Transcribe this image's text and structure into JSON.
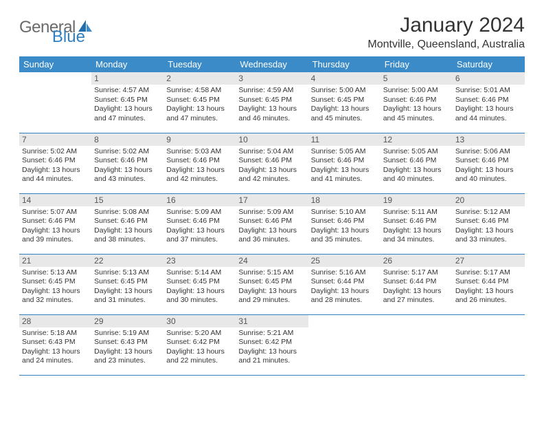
{
  "brand": {
    "part1": "General",
    "part2": "Blue"
  },
  "title": "January 2024",
  "location": "Montville, Queensland, Australia",
  "colors": {
    "header_bg": "#3b8bc8",
    "header_text": "#ffffff",
    "rule": "#2f7fc2",
    "daynum_bg": "#e8e8e8",
    "text": "#333333",
    "logo_gray": "#6a6a6a",
    "logo_blue": "#2f7fc2"
  },
  "weekdays": [
    "Sunday",
    "Monday",
    "Tuesday",
    "Wednesday",
    "Thursday",
    "Friday",
    "Saturday"
  ],
  "weeks": [
    [
      null,
      {
        "n": "1",
        "sr": "Sunrise: 4:57 AM",
        "ss": "Sunset: 6:45 PM",
        "d1": "Daylight: 13 hours",
        "d2": "and 47 minutes."
      },
      {
        "n": "2",
        "sr": "Sunrise: 4:58 AM",
        "ss": "Sunset: 6:45 PM",
        "d1": "Daylight: 13 hours",
        "d2": "and 47 minutes."
      },
      {
        "n": "3",
        "sr": "Sunrise: 4:59 AM",
        "ss": "Sunset: 6:45 PM",
        "d1": "Daylight: 13 hours",
        "d2": "and 46 minutes."
      },
      {
        "n": "4",
        "sr": "Sunrise: 5:00 AM",
        "ss": "Sunset: 6:45 PM",
        "d1": "Daylight: 13 hours",
        "d2": "and 45 minutes."
      },
      {
        "n": "5",
        "sr": "Sunrise: 5:00 AM",
        "ss": "Sunset: 6:46 PM",
        "d1": "Daylight: 13 hours",
        "d2": "and 45 minutes."
      },
      {
        "n": "6",
        "sr": "Sunrise: 5:01 AM",
        "ss": "Sunset: 6:46 PM",
        "d1": "Daylight: 13 hours",
        "d2": "and 44 minutes."
      }
    ],
    [
      {
        "n": "7",
        "sr": "Sunrise: 5:02 AM",
        "ss": "Sunset: 6:46 PM",
        "d1": "Daylight: 13 hours",
        "d2": "and 44 minutes."
      },
      {
        "n": "8",
        "sr": "Sunrise: 5:02 AM",
        "ss": "Sunset: 6:46 PM",
        "d1": "Daylight: 13 hours",
        "d2": "and 43 minutes."
      },
      {
        "n": "9",
        "sr": "Sunrise: 5:03 AM",
        "ss": "Sunset: 6:46 PM",
        "d1": "Daylight: 13 hours",
        "d2": "and 42 minutes."
      },
      {
        "n": "10",
        "sr": "Sunrise: 5:04 AM",
        "ss": "Sunset: 6:46 PM",
        "d1": "Daylight: 13 hours",
        "d2": "and 42 minutes."
      },
      {
        "n": "11",
        "sr": "Sunrise: 5:05 AM",
        "ss": "Sunset: 6:46 PM",
        "d1": "Daylight: 13 hours",
        "d2": "and 41 minutes."
      },
      {
        "n": "12",
        "sr": "Sunrise: 5:05 AM",
        "ss": "Sunset: 6:46 PM",
        "d1": "Daylight: 13 hours",
        "d2": "and 40 minutes."
      },
      {
        "n": "13",
        "sr": "Sunrise: 5:06 AM",
        "ss": "Sunset: 6:46 PM",
        "d1": "Daylight: 13 hours",
        "d2": "and 40 minutes."
      }
    ],
    [
      {
        "n": "14",
        "sr": "Sunrise: 5:07 AM",
        "ss": "Sunset: 6:46 PM",
        "d1": "Daylight: 13 hours",
        "d2": "and 39 minutes."
      },
      {
        "n": "15",
        "sr": "Sunrise: 5:08 AM",
        "ss": "Sunset: 6:46 PM",
        "d1": "Daylight: 13 hours",
        "d2": "and 38 minutes."
      },
      {
        "n": "16",
        "sr": "Sunrise: 5:09 AM",
        "ss": "Sunset: 6:46 PM",
        "d1": "Daylight: 13 hours",
        "d2": "and 37 minutes."
      },
      {
        "n": "17",
        "sr": "Sunrise: 5:09 AM",
        "ss": "Sunset: 6:46 PM",
        "d1": "Daylight: 13 hours",
        "d2": "and 36 minutes."
      },
      {
        "n": "18",
        "sr": "Sunrise: 5:10 AM",
        "ss": "Sunset: 6:46 PM",
        "d1": "Daylight: 13 hours",
        "d2": "and 35 minutes."
      },
      {
        "n": "19",
        "sr": "Sunrise: 5:11 AM",
        "ss": "Sunset: 6:46 PM",
        "d1": "Daylight: 13 hours",
        "d2": "and 34 minutes."
      },
      {
        "n": "20",
        "sr": "Sunrise: 5:12 AM",
        "ss": "Sunset: 6:46 PM",
        "d1": "Daylight: 13 hours",
        "d2": "and 33 minutes."
      }
    ],
    [
      {
        "n": "21",
        "sr": "Sunrise: 5:13 AM",
        "ss": "Sunset: 6:45 PM",
        "d1": "Daylight: 13 hours",
        "d2": "and 32 minutes."
      },
      {
        "n": "22",
        "sr": "Sunrise: 5:13 AM",
        "ss": "Sunset: 6:45 PM",
        "d1": "Daylight: 13 hours",
        "d2": "and 31 minutes."
      },
      {
        "n": "23",
        "sr": "Sunrise: 5:14 AM",
        "ss": "Sunset: 6:45 PM",
        "d1": "Daylight: 13 hours",
        "d2": "and 30 minutes."
      },
      {
        "n": "24",
        "sr": "Sunrise: 5:15 AM",
        "ss": "Sunset: 6:45 PM",
        "d1": "Daylight: 13 hours",
        "d2": "and 29 minutes."
      },
      {
        "n": "25",
        "sr": "Sunrise: 5:16 AM",
        "ss": "Sunset: 6:44 PM",
        "d1": "Daylight: 13 hours",
        "d2": "and 28 minutes."
      },
      {
        "n": "26",
        "sr": "Sunrise: 5:17 AM",
        "ss": "Sunset: 6:44 PM",
        "d1": "Daylight: 13 hours",
        "d2": "and 27 minutes."
      },
      {
        "n": "27",
        "sr": "Sunrise: 5:17 AM",
        "ss": "Sunset: 6:44 PM",
        "d1": "Daylight: 13 hours",
        "d2": "and 26 minutes."
      }
    ],
    [
      {
        "n": "28",
        "sr": "Sunrise: 5:18 AM",
        "ss": "Sunset: 6:43 PM",
        "d1": "Daylight: 13 hours",
        "d2": "and 24 minutes."
      },
      {
        "n": "29",
        "sr": "Sunrise: 5:19 AM",
        "ss": "Sunset: 6:43 PM",
        "d1": "Daylight: 13 hours",
        "d2": "and 23 minutes."
      },
      {
        "n": "30",
        "sr": "Sunrise: 5:20 AM",
        "ss": "Sunset: 6:42 PM",
        "d1": "Daylight: 13 hours",
        "d2": "and 22 minutes."
      },
      {
        "n": "31",
        "sr": "Sunrise: 5:21 AM",
        "ss": "Sunset: 6:42 PM",
        "d1": "Daylight: 13 hours",
        "d2": "and 21 minutes."
      },
      null,
      null,
      null
    ]
  ]
}
